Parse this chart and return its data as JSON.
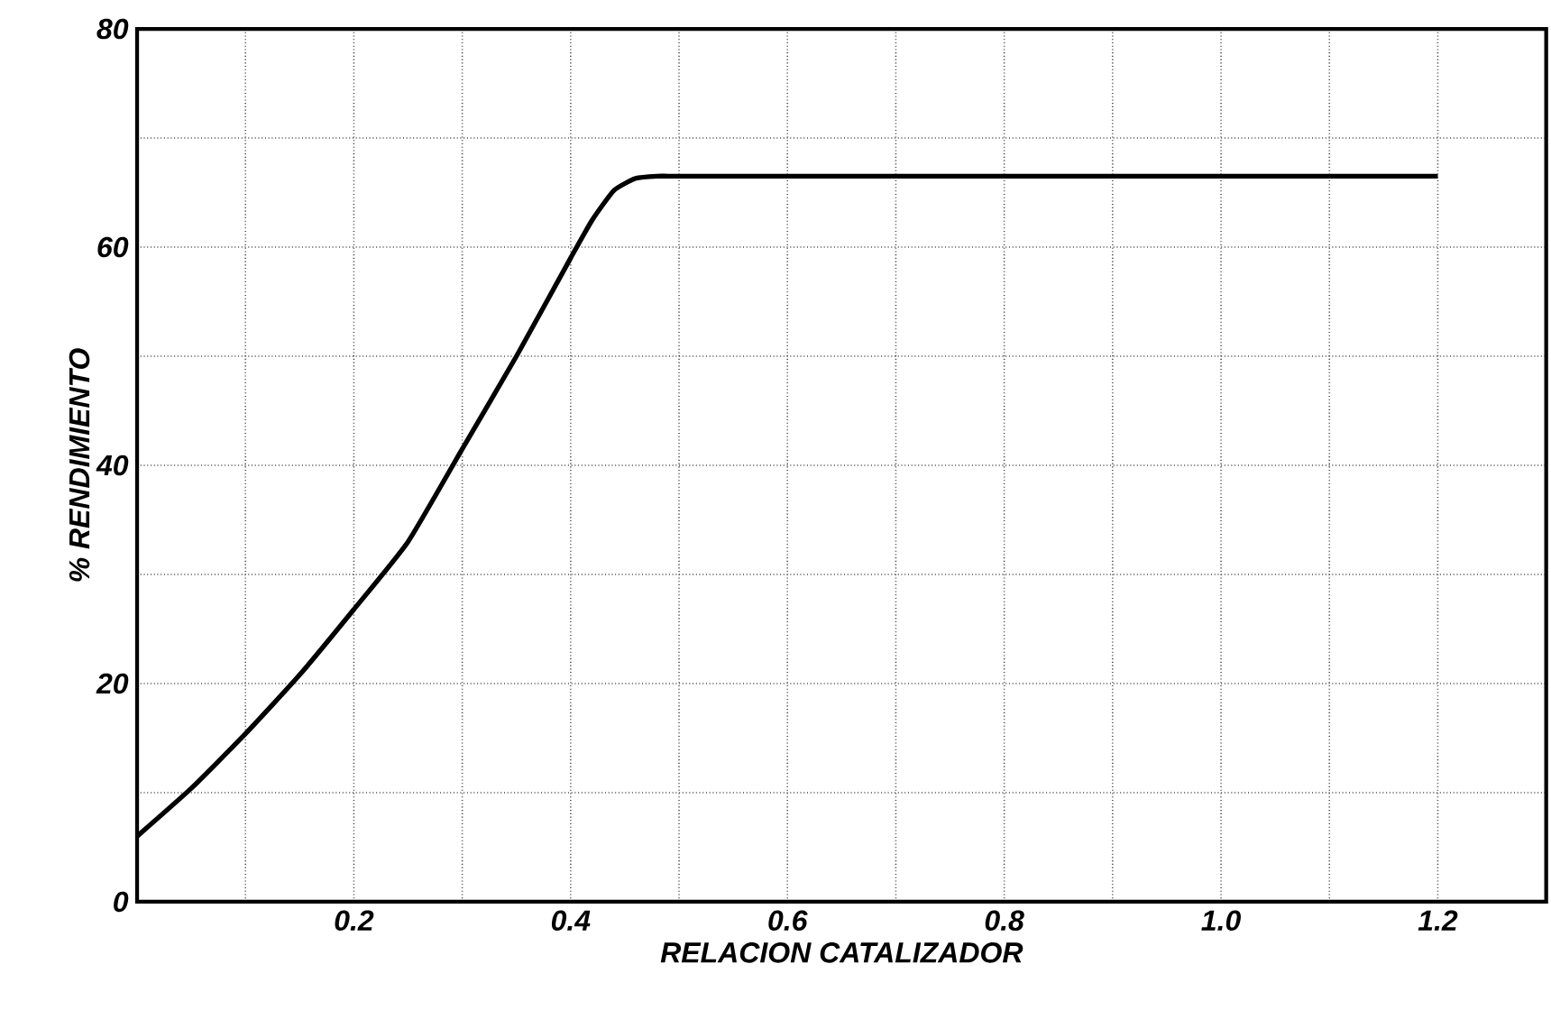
{
  "chart_data": {
    "type": "line",
    "xlabel": "RELACION CATALIZADOR",
    "ylabel": "% RENDIMIENTO",
    "x": [
      0,
      0.05,
      0.1,
      0.15,
      0.2,
      0.25,
      0.3,
      0.35,
      0.4,
      0.42,
      0.44,
      0.46,
      0.48,
      0.5,
      0.6,
      0.8,
      1.0,
      1.2
    ],
    "series": [
      {
        "color": "#000000",
        "values": [
          6,
          10.4,
          15.4,
          20.8,
          26.8,
          33,
          41.5,
          50,
          59,
          62.5,
          65.2,
          66.3,
          66.5,
          66.5,
          66.5,
          66.5,
          66.5,
          66.5
        ]
      }
    ],
    "xlim": [
      0,
      1.3
    ],
    "ylim": [
      0,
      80
    ],
    "xticks": [
      {
        "value": 0.1,
        "label": null
      },
      {
        "value": 0.2,
        "label": "0.2"
      },
      {
        "value": 0.3,
        "label": null
      },
      {
        "value": 0.4,
        "label": "0.4"
      },
      {
        "value": 0.5,
        "label": null
      },
      {
        "value": 0.6,
        "label": "0.6"
      },
      {
        "value": 0.7,
        "label": null
      },
      {
        "value": 0.8,
        "label": "0.8"
      },
      {
        "value": 0.9,
        "label": null
      },
      {
        "value": 1.0,
        "label": "1.0"
      },
      {
        "value": 1.1,
        "label": null
      },
      {
        "value": 1.2,
        "label": "1.2"
      }
    ],
    "yticks": [
      0,
      {
        "value": 10,
        "label": null
      },
      20,
      {
        "value": 30,
        "label": null
      },
      40,
      {
        "value": 50,
        "label": null
      },
      60,
      {
        "value": 70,
        "label": null
      },
      80
    ],
    "grid": true,
    "marker": "none",
    "line_style": "solid"
  }
}
